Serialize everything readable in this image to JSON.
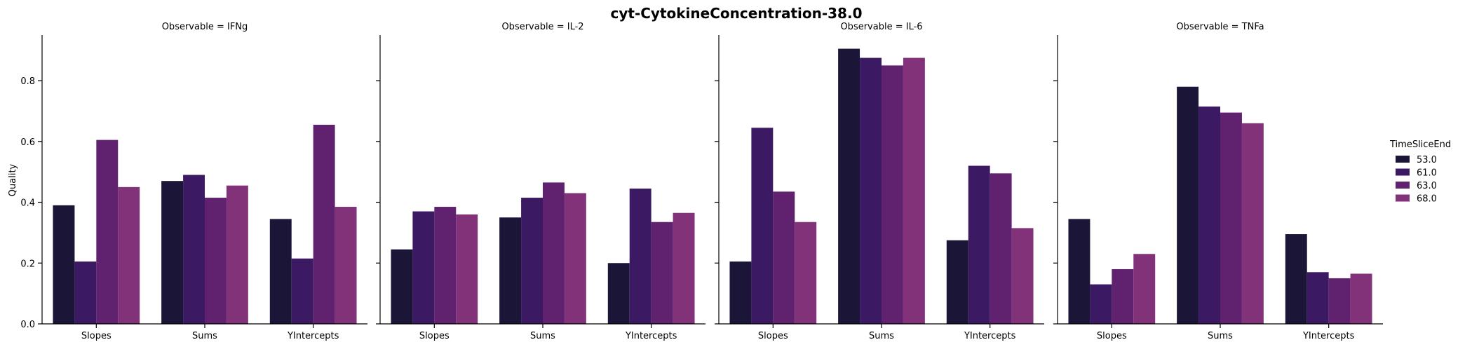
{
  "chart_data": {
    "type": "bar",
    "title": "cyt-CytokineConcentration-38.0",
    "ylabel": "Quality",
    "ylim": [
      0,
      0.95
    ],
    "yticks": [
      "0.0",
      "0.2",
      "0.4",
      "0.6",
      "0.8"
    ],
    "categories": [
      "Slopes",
      "Sums",
      "YIntercepts"
    ],
    "legend": {
      "title": "TimeSliceEnd",
      "placement": "right",
      "entries": [
        "53.0",
        "61.0",
        "63.0",
        "68.0"
      ],
      "colors": [
        "#1b1537",
        "#3c1a63",
        "#60226f",
        "#823279"
      ]
    },
    "panels": [
      {
        "title": "Observable = IFNg",
        "series": [
          {
            "name": "53.0",
            "values": [
              0.39,
              0.47,
              0.345
            ]
          },
          {
            "name": "61.0",
            "values": [
              0.205,
              0.49,
              0.215
            ]
          },
          {
            "name": "63.0",
            "values": [
              0.605,
              0.415,
              0.655
            ]
          },
          {
            "name": "68.0",
            "values": [
              0.45,
              0.455,
              0.385
            ]
          }
        ]
      },
      {
        "title": "Observable = IL-2",
        "series": [
          {
            "name": "53.0",
            "values": [
              0.245,
              0.35,
              0.2
            ]
          },
          {
            "name": "61.0",
            "values": [
              0.37,
              0.415,
              0.445
            ]
          },
          {
            "name": "63.0",
            "values": [
              0.385,
              0.465,
              0.335
            ]
          },
          {
            "name": "68.0",
            "values": [
              0.36,
              0.43,
              0.365
            ]
          }
        ]
      },
      {
        "title": "Observable = IL-6",
        "series": [
          {
            "name": "53.0",
            "values": [
              0.205,
              0.905,
              0.275
            ]
          },
          {
            "name": "61.0",
            "values": [
              0.645,
              0.875,
              0.52
            ]
          },
          {
            "name": "63.0",
            "values": [
              0.435,
              0.85,
              0.495
            ]
          },
          {
            "name": "68.0",
            "values": [
              0.335,
              0.875,
              0.315
            ]
          }
        ]
      },
      {
        "title": "Observable = TNFa",
        "series": [
          {
            "name": "53.0",
            "values": [
              0.345,
              0.78,
              0.295
            ]
          },
          {
            "name": "61.0",
            "values": [
              0.13,
              0.715,
              0.17
            ]
          },
          {
            "name": "63.0",
            "values": [
              0.18,
              0.695,
              0.15
            ]
          },
          {
            "name": "68.0",
            "values": [
              0.23,
              0.66,
              0.165
            ]
          }
        ]
      }
    ]
  }
}
